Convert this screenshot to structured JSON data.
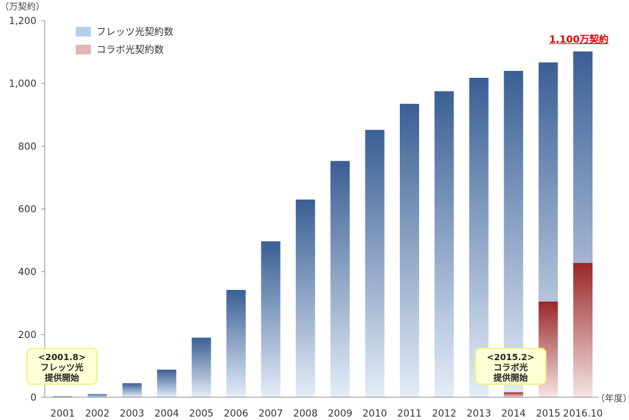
{
  "chart_data": {
    "type": "bar",
    "stacked": "overlay",
    "y_unit_label": "（万契約）",
    "x_unit_label": "（年度）",
    "categories": [
      "2001",
      "2002",
      "2003",
      "2004",
      "2005",
      "2006",
      "2007",
      "2008",
      "2009",
      "2010",
      "2011",
      "2012",
      "2013",
      "2014",
      "2015",
      "2016.10"
    ],
    "ylim": [
      0,
      1200
    ],
    "yticks": [
      "0",
      "200",
      "400",
      "600",
      "800",
      "1,000",
      "1,200"
    ],
    "ytick_values": [
      0,
      200,
      400,
      600,
      800,
      1000,
      1200
    ],
    "grid": false,
    "legend_position": "top-left",
    "series": [
      {
        "name": "フレッツ光契約数",
        "color": "#3b6196",
        "legend_color": "#b8cfe8",
        "values": [
          3,
          10,
          45,
          88,
          190,
          342,
          497,
          630,
          753,
          852,
          935,
          975,
          1018,
          1040,
          1067,
          1102
        ]
      },
      {
        "name": "コラボ光契約数",
        "color": "#9b2a2a",
        "legend_color": "#e3b4b4",
        "values": [
          0,
          0,
          0,
          0,
          0,
          0,
          0,
          0,
          0,
          0,
          0,
          0,
          0,
          16,
          305,
          428
        ]
      }
    ],
    "annotations": {
      "callout": "1,100万契約",
      "note_2001": {
        "line1": "<2001.8>",
        "line2": "フレッツ光",
        "line3": "提供開始"
      },
      "note_2015": {
        "line1": "<2015.2>",
        "line2": "コラボ光",
        "line3": "提供開始"
      }
    }
  },
  "colors": {
    "callout": "#e00000",
    "note_bg": "#ffffd6",
    "note_border": "#f2f28c",
    "axis": "#888888"
  }
}
